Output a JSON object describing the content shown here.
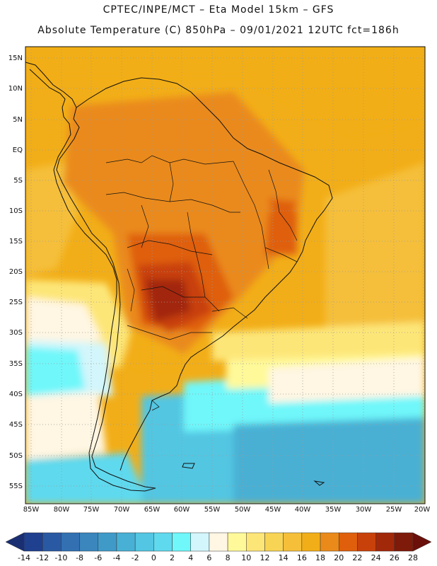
{
  "header": {
    "line1": "CPTEC/INPE/MCT –  Eta Model 15km – GFS",
    "line2": "Absolute Temperature (C) 850hPa – 09/01/2021 12UTC fct=186h"
  },
  "map": {
    "lat_labels": [
      "15N",
      "10N",
      "5N",
      "EQ",
      "5S",
      "10S",
      "15S",
      "20S",
      "25S",
      "30S",
      "35S",
      "40S",
      "45S",
      "50S",
      "55S"
    ],
    "lon_labels": [
      "85W",
      "80W",
      "75W",
      "70W",
      "65W",
      "60W",
      "55W",
      "50W",
      "45W",
      "40W",
      "35W",
      "30W",
      "25W",
      "20W"
    ]
  },
  "colorbar": {
    "labels": [
      "-14",
      "-12",
      "-10",
      "-8",
      "-6",
      "-4",
      "-2",
      "0",
      "2",
      "4",
      "6",
      "8",
      "10",
      "12",
      "14",
      "16",
      "18",
      "20",
      "22",
      "24",
      "26",
      "28"
    ],
    "colors": [
      "#1f3f8f",
      "#2a59a3",
      "#3270b2",
      "#3a86bd",
      "#3f9ac8",
      "#48b0d4",
      "#52c6e2",
      "#5fd9ee",
      "#6ff7fa",
      "#d2f6fb",
      "#fff6e3",
      "#fff99a",
      "#fde678",
      "#f8d455",
      "#f5bf3a",
      "#f2ae18",
      "#ea8a1a",
      "#df5f0c",
      "#c8410a",
      "#a2280a",
      "#7e1a0a"
    ]
  }
}
